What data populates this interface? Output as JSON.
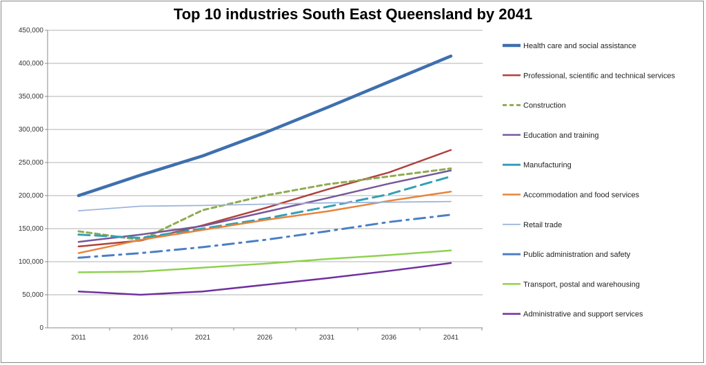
{
  "chart_data": {
    "type": "line",
    "title": "Top 10 industries South East Queensland by 2041",
    "xlabel": "",
    "ylabel": "",
    "x": [
      "2011",
      "2016",
      "2021",
      "2026",
      "2031",
      "2036",
      "2041"
    ],
    "ylim": [
      0,
      450000
    ],
    "yticks": [
      0,
      50000,
      100000,
      150000,
      200000,
      250000,
      300000,
      350000,
      400000,
      450000
    ],
    "ytick_labels": [
      "0",
      "50,000",
      "100,000",
      "150,000",
      "200,000",
      "250,000",
      "300,000",
      "350,000",
      "400,000",
      "450,000"
    ],
    "grid": true,
    "legend_position": "right",
    "series": [
      {
        "name": "Health care and social assistance",
        "color": "#3f6fae",
        "style": "solid-thick",
        "values": [
          200000,
          231000,
          260000,
          295000,
          333000,
          372000,
          411000
        ]
      },
      {
        "name": "Professional, scientific and technical services",
        "color": "#b0413e",
        "style": "solid",
        "values": [
          123000,
          132000,
          155000,
          181000,
          209000,
          235000,
          269000
        ]
      },
      {
        "name": "Construction",
        "color": "#8fab4f",
        "style": "dashed",
        "values": [
          146000,
          133000,
          178000,
          200000,
          217000,
          229000,
          241000
        ]
      },
      {
        "name": "Education and training",
        "color": "#76579a",
        "style": "solid",
        "values": [
          130000,
          141000,
          154000,
          175000,
          196000,
          218000,
          238000
        ]
      },
      {
        "name": "Manufacturing",
        "color": "#33a0b5",
        "style": "long-dash",
        "values": [
          141000,
          136000,
          150000,
          165000,
          183000,
          202000,
          229000
        ]
      },
      {
        "name": "Accommodation  and food services",
        "color": "#e8843a",
        "style": "solid",
        "values": [
          113000,
          133000,
          148000,
          163000,
          176000,
          192000,
          206000
        ]
      },
      {
        "name": "Retail trade",
        "color": "#9db5dc",
        "style": "solid-thin",
        "values": [
          177000,
          184000,
          185000,
          187000,
          189000,
          190000,
          191000
        ]
      },
      {
        "name": "Public administration and safety",
        "color": "#4a7ec7",
        "style": "dash-dot",
        "values": [
          106000,
          113000,
          122000,
          133000,
          146000,
          160000,
          171000
        ]
      },
      {
        "name": "Transport, postal and warehousing",
        "color": "#8fd14f",
        "style": "solid",
        "values": [
          84000,
          85000,
          91000,
          97000,
          104000,
          110000,
          117000
        ]
      },
      {
        "name": "Administrative  and support services",
        "color": "#7030a0",
        "style": "solid",
        "values": [
          55000,
          50000,
          55000,
          65000,
          75000,
          86000,
          98000
        ]
      }
    ]
  }
}
